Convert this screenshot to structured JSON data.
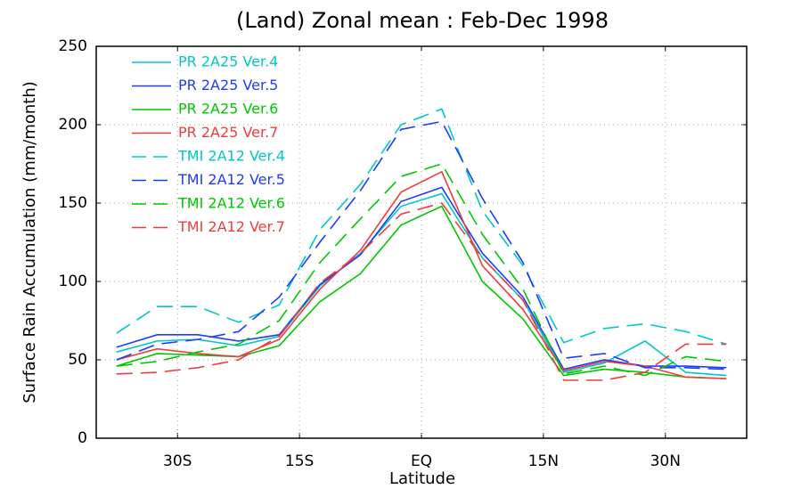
{
  "chart_data": {
    "type": "line",
    "title": "(Land) Zonal mean : Feb-Dec 1998",
    "x_label": "Latitude",
    "y_label": "Surface Rain Accumulation (mm/month)",
    "x": [
      -37.5,
      -32.5,
      -27.5,
      -22.5,
      -17.5,
      -12.5,
      -7.5,
      -2.5,
      2.5,
      7.5,
      12.5,
      17.5,
      22.5,
      27.5,
      32.5,
      37.5
    ],
    "xlim": [
      -40,
      40
    ],
    "xticks": [
      {
        "value": -30,
        "label": "30S"
      },
      {
        "value": -15,
        "label": "15S"
      },
      {
        "value": 0,
        "label": "EQ"
      },
      {
        "value": 15,
        "label": "15N"
      },
      {
        "value": 30,
        "label": "30N"
      }
    ],
    "ylim": [
      0,
      250
    ],
    "yticks": [
      0,
      50,
      100,
      150,
      200,
      250
    ],
    "grid": true,
    "legend": "upper left",
    "series": [
      {
        "name": "PR  2A25 Ver.4",
        "color": "#00c8c8",
        "linestyle": "solid",
        "values": [
          55,
          62,
          63,
          59,
          65,
          97,
          118,
          148,
          156,
          115,
          88,
          42,
          48,
          62,
          42,
          40
        ]
      },
      {
        "name": "PR  2A25 Ver.5",
        "color": "#1e3cff",
        "linestyle": "solid",
        "values": [
          58,
          66,
          66,
          62,
          66,
          98,
          117,
          151,
          160,
          118,
          90,
          44,
          50,
          46,
          46,
          45
        ]
      },
      {
        "name": "PR  2A25 Ver.6",
        "color": "#00c800",
        "linestyle": "solid",
        "values": [
          46,
          54,
          53,
          52,
          59,
          87,
          105,
          136,
          148,
          100,
          76,
          40,
          44,
          42,
          39,
          38
        ]
      },
      {
        "name": "PR  2A25 Ver.7",
        "color": "#f03c3c",
        "linestyle": "solid",
        "values": [
          50,
          57,
          54,
          52,
          63,
          95,
          120,
          157,
          170,
          110,
          82,
          43,
          49,
          46,
          39,
          38
        ]
      },
      {
        "name": "TMI  2A12 Ver.4",
        "color": "#00c8c8",
        "linestyle": "dashed",
        "values": [
          67,
          84,
          84,
          74,
          85,
          133,
          162,
          200,
          210,
          145,
          110,
          61,
          70,
          73,
          68,
          60
        ]
      },
      {
        "name": "TMI  2A12 Ver.5",
        "color": "#1e3cff",
        "linestyle": "dashed",
        "values": [
          50,
          60,
          63,
          68,
          90,
          125,
          158,
          197,
          202,
          153,
          112,
          51,
          54,
          45,
          45,
          44
        ]
      },
      {
        "name": "TMI  2A12 Ver.6",
        "color": "#00c800",
        "linestyle": "dashed",
        "values": [
          46,
          49,
          55,
          60,
          75,
          112,
          140,
          167,
          175,
          130,
          95,
          41,
          46,
          40,
          52,
          49
        ]
      },
      {
        "name": "TMI  2A12 Ver.7",
        "color": "#f03c3c",
        "linestyle": "dashed",
        "values": [
          41,
          42,
          45,
          50,
          65,
          99,
          118,
          143,
          150,
          115,
          88,
          37,
          37,
          42,
          60,
          60
        ]
      }
    ]
  }
}
